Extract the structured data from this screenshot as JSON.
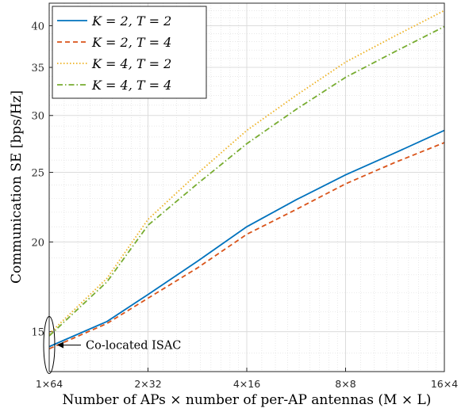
{
  "chart_data": {
    "type": "line",
    "title": "",
    "xlabel": "Number of APs × number of per-AP antennas (M × L)",
    "ylabel": "Communication SE [bps/Hz]",
    "x_scale": "log2",
    "x": [
      1,
      2,
      4,
      8,
      16
    ],
    "x_tick_labels": [
      "1×64",
      "2×32",
      "4×16",
      "8×8",
      "16×4"
    ],
    "y_scale": "log",
    "ylim": [
      13.2,
      43
    ],
    "y_ticks": [
      15,
      20,
      25,
      30,
      35,
      40
    ],
    "grid": true,
    "minor_grid": true,
    "legend_position": "top-left",
    "series": [
      {
        "name": "K = 2, T = 2",
        "color": "#0072BD",
        "dash": "solid",
        "x": [
          1,
          1.5,
          2,
          2.83,
          4,
          5.66,
          8,
          11.3,
          16
        ],
        "values": [
          14.3,
          15.5,
          16.9,
          18.8,
          21.0,
          22.9,
          24.8,
          26.6,
          28.6
        ]
      },
      {
        "name": "K = 2, T = 4",
        "color": "#D95319",
        "dash": "dashed",
        "x": [
          1,
          1.5,
          2,
          2.83,
          4,
          5.66,
          8,
          11.3,
          16
        ],
        "values": [
          14.2,
          15.4,
          16.7,
          18.4,
          20.5,
          22.2,
          24.1,
          25.8,
          27.5
        ]
      },
      {
        "name": "K = 4, T = 2",
        "color": "#EDB120",
        "dash": "dotted",
        "x": [
          1,
          1.5,
          2,
          2.83,
          4,
          5.66,
          8,
          11.3,
          16
        ],
        "values": [
          14.9,
          17.8,
          21.5,
          24.9,
          28.6,
          32.0,
          35.6,
          38.7,
          42.0
        ]
      },
      {
        "name": "K = 4, T = 4",
        "color": "#77AC30",
        "dash": "dashdot",
        "x": [
          1,
          1.5,
          2,
          2.83,
          4,
          5.66,
          8,
          11.3,
          16
        ],
        "values": [
          14.8,
          17.6,
          21.1,
          24.1,
          27.4,
          30.6,
          33.9,
          36.8,
          39.9
        ]
      }
    ],
    "annotation": {
      "text": "Co-located ISAC",
      "x": 1,
      "y": 14.3
    }
  }
}
